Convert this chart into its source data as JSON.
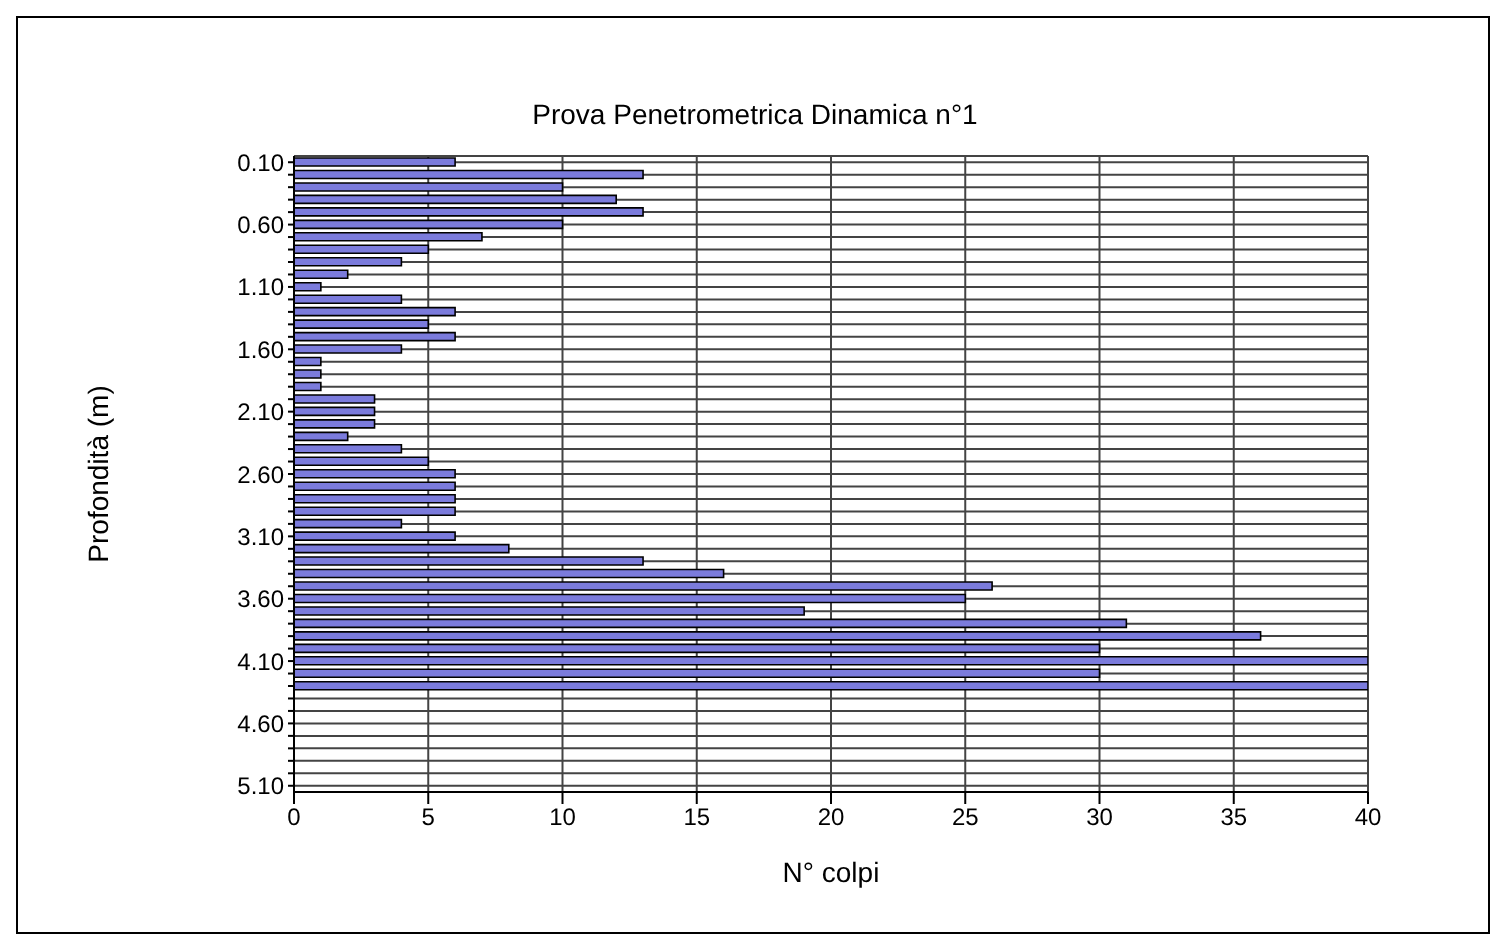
{
  "chart_data": {
    "type": "bar",
    "orientation": "horizontal",
    "title": "Prova Penetrometrica Dinamica n°1",
    "xlabel": "N° colpi",
    "ylabel": "Profondità (m)",
    "categories": [
      "0.10",
      null,
      null,
      null,
      null,
      "0.60",
      null,
      null,
      null,
      null,
      "1.10",
      null,
      null,
      null,
      null,
      "1.60",
      null,
      null,
      null,
      null,
      "2.10",
      null,
      null,
      null,
      null,
      "2.60",
      null,
      null,
      null,
      null,
      "3.10",
      null,
      null,
      null,
      null,
      "3.60",
      null,
      null,
      null,
      null,
      "4.10",
      null,
      null,
      null,
      null,
      "4.60",
      null,
      null,
      null,
      null,
      "5.10"
    ],
    "values": [
      6,
      13,
      10,
      12,
      13,
      10,
      7,
      5,
      4,
      2,
      1,
      4,
      6,
      5,
      6,
      4,
      1,
      1,
      1,
      3,
      3,
      3,
      2,
      4,
      5,
      6,
      6,
      6,
      6,
      4,
      6,
      8,
      13,
      16,
      26,
      25,
      19,
      31,
      36,
      30,
      40,
      30,
      40,
      0,
      0,
      0,
      0,
      0,
      0,
      0,
      0
    ],
    "color": "#7b7bdc",
    "xlim": [
      0,
      40
    ],
    "xticks": [
      0,
      5,
      10,
      15,
      20,
      25,
      30,
      35,
      40
    ],
    "grid": true
  }
}
